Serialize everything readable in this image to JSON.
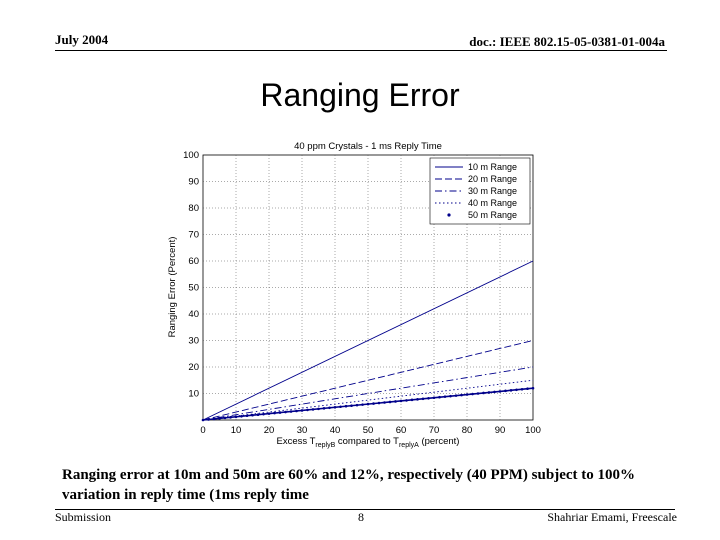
{
  "header": {
    "date": "July 2004",
    "doc_id": "doc.: IEEE 802.15-05-0381-01-004a"
  },
  "slide_title": "Ranging Error",
  "caption": "Ranging error at 10m and 50m are 60% and 12%, respectively (40 PPM) subject to 100% variation in reply time (1ms reply time",
  "footer": {
    "left": "Submission",
    "page": "8",
    "author": "Shahriar Emami, Freescale"
  },
  "chart_data": {
    "type": "line",
    "title": "40 ppm Crystals - 1 ms Reply Time",
    "xlabel_main": "Excess T",
    "xlabel_sub1": "replyB",
    "xlabel_mid": " compared to T",
    "xlabel_sub2": "replyA",
    "xlabel_end": " (percent)",
    "ylabel": "Ranging Error (Percent)",
    "xlim": [
      0,
      100
    ],
    "ylim": [
      0,
      100
    ],
    "xticks": [
      0,
      10,
      20,
      30,
      40,
      50,
      60,
      70,
      80,
      90,
      100
    ],
    "yticks": [
      10,
      20,
      30,
      40,
      50,
      60,
      70,
      80,
      90,
      100
    ],
    "grid": true,
    "legend_position": "top-right",
    "x": [
      0,
      100
    ],
    "series": [
      {
        "name": "10 m Range",
        "values": [
          0,
          60
        ],
        "dash": "solid",
        "color": "#00008b"
      },
      {
        "name": "20 m Range",
        "values": [
          0,
          30
        ],
        "dash": "dashed",
        "color": "#00008b"
      },
      {
        "name": "30 m Range",
        "values": [
          0,
          20
        ],
        "dash": "dashdot",
        "color": "#00008b"
      },
      {
        "name": "40 m Range",
        "values": [
          0,
          15
        ],
        "dash": "dotted",
        "color": "#00008b"
      },
      {
        "name": "50 m Range",
        "values": [
          0,
          12
        ],
        "dash": "markers",
        "color": "#00008b"
      }
    ]
  }
}
